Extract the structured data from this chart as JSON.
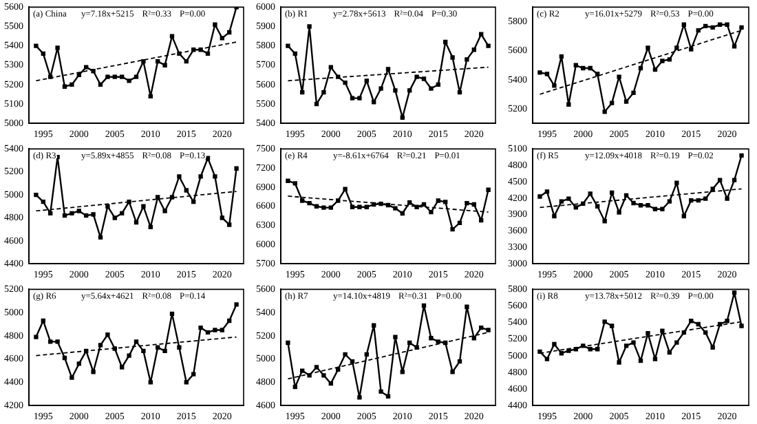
{
  "chart_data": [
    {
      "type": "line",
      "annotations": [
        "(a) China",
        "y=7.18x+5215",
        "R²=0.33",
        "P=0.00"
      ],
      "x": [
        1994,
        1995,
        1996,
        1997,
        1998,
        1999,
        2000,
        2001,
        2002,
        2003,
        2004,
        2005,
        2006,
        2007,
        2008,
        2009,
        2010,
        2011,
        2012,
        2013,
        2014,
        2015,
        2016,
        2017,
        2018,
        2019,
        2020,
        2021,
        2022
      ],
      "xlim": [
        1993,
        2023
      ],
      "xticks": [
        1995,
        2000,
        2005,
        2010,
        2015,
        2020
      ],
      "ylim": [
        5000,
        5600
      ],
      "yticks": [
        5000,
        5100,
        5200,
        5300,
        5400,
        5500,
        5600
      ],
      "marker": "square",
      "grid": false,
      "legend": false,
      "series": [
        {
          "color": "#000000",
          "values": [
            5400,
            5360,
            5240,
            5390,
            5190,
            5200,
            5250,
            5290,
            5270,
            5200,
            5240,
            5240,
            5240,
            5220,
            5240,
            5320,
            5140,
            5320,
            5300,
            5450,
            5360,
            5320,
            5380,
            5380,
            5360,
            5510,
            5440,
            5470,
            5600
          ]
        },
        {
          "type": "line",
          "color": "#000000",
          "line_style": "dashed",
          "marker": "none",
          "values": [
            5220,
            null,
            null,
            null,
            null,
            null,
            null,
            null,
            null,
            null,
            null,
            null,
            null,
            null,
            null,
            null,
            null,
            null,
            null,
            null,
            null,
            null,
            null,
            null,
            null,
            null,
            null,
            null,
            5420
          ]
        }
      ]
    },
    {
      "type": "line",
      "annotations": [
        "(b) R1",
        "y=2.78x+5613",
        "R²=0.04",
        "P=0.30"
      ],
      "x": [
        1994,
        1995,
        1996,
        1997,
        1998,
        1999,
        2000,
        2001,
        2002,
        2003,
        2004,
        2005,
        2006,
        2007,
        2008,
        2009,
        2010,
        2011,
        2012,
        2013,
        2014,
        2015,
        2016,
        2017,
        2018,
        2019,
        2020,
        2021,
        2022
      ],
      "xlim": [
        1993,
        2023
      ],
      "xticks": [
        1995,
        2000,
        2005,
        2010,
        2015,
        2020
      ],
      "ylim": [
        5400,
        6000
      ],
      "yticks": [
        5400,
        5500,
        5600,
        5700,
        5800,
        5900,
        6000
      ],
      "marker": "square",
      "grid": false,
      "legend": false,
      "series": [
        {
          "color": "#000000",
          "values": [
            5800,
            5760,
            5560,
            5900,
            5500,
            5560,
            5690,
            5640,
            5610,
            5530,
            5530,
            5620,
            5510,
            5580,
            5680,
            5570,
            5430,
            5570,
            5640,
            5630,
            5580,
            5600,
            5820,
            5740,
            5560,
            5730,
            5780,
            5860,
            5800
          ]
        },
        {
          "type": "line",
          "color": "#000000",
          "line_style": "dashed",
          "marker": "none",
          "values": [
            5620,
            null,
            null,
            null,
            null,
            null,
            null,
            null,
            null,
            null,
            null,
            null,
            null,
            null,
            null,
            null,
            null,
            null,
            null,
            null,
            null,
            null,
            null,
            null,
            null,
            null,
            null,
            null,
            5690
          ]
        }
      ]
    },
    {
      "type": "line",
      "annotations": [
        "(c) R2",
        "y=16.01x+5279",
        "R²=0.53",
        "P=0.00"
      ],
      "x": [
        1994,
        1995,
        1996,
        1997,
        1998,
        1999,
        2000,
        2001,
        2002,
        2003,
        2004,
        2005,
        2006,
        2007,
        2008,
        2009,
        2010,
        2011,
        2012,
        2013,
        2014,
        2015,
        2016,
        2017,
        2018,
        2019,
        2020,
        2021,
        2022
      ],
      "xlim": [
        1993,
        2023
      ],
      "xticks": [
        1995,
        2000,
        2005,
        2010,
        2015,
        2020
      ],
      "ylim": [
        5100,
        5900
      ],
      "yticks": [
        5200,
        5400,
        5600,
        5800
      ],
      "marker": "square",
      "grid": false,
      "legend": false,
      "series": [
        {
          "color": "#000000",
          "values": [
            5450,
            5440,
            5360,
            5560,
            5230,
            5500,
            5480,
            5480,
            5440,
            5180,
            5240,
            5420,
            5250,
            5310,
            5480,
            5620,
            5470,
            5530,
            5540,
            5620,
            5780,
            5610,
            5740,
            5770,
            5760,
            5780,
            5780,
            5630,
            5760
          ]
        },
        {
          "type": "line",
          "color": "#000000",
          "line_style": "dashed",
          "marker": "none",
          "values": [
            5300,
            null,
            null,
            null,
            null,
            null,
            null,
            null,
            null,
            null,
            null,
            null,
            null,
            null,
            null,
            null,
            null,
            null,
            null,
            null,
            null,
            null,
            null,
            null,
            null,
            null,
            null,
            null,
            5740
          ]
        }
      ]
    },
    {
      "type": "line",
      "annotations": [
        "(d) R3",
        "y=5.89x+4855",
        "R²=0.08",
        "P=0.13"
      ],
      "x": [
        1994,
        1995,
        1996,
        1997,
        1998,
        1999,
        2000,
        2001,
        2002,
        2003,
        2004,
        2005,
        2006,
        2007,
        2008,
        2009,
        2010,
        2011,
        2012,
        2013,
        2014,
        2015,
        2016,
        2017,
        2018,
        2019,
        2020,
        2021,
        2022
      ],
      "xlim": [
        1993,
        2023
      ],
      "xticks": [
        1995,
        2000,
        2005,
        2010,
        2015,
        2020
      ],
      "ylim": [
        4400,
        5400
      ],
      "yticks": [
        4400,
        4600,
        4800,
        5000,
        5200,
        5400
      ],
      "marker": "square",
      "grid": false,
      "legend": false,
      "series": [
        {
          "color": "#000000",
          "values": [
            5000,
            4940,
            4840,
            5330,
            4820,
            4840,
            4860,
            4820,
            4830,
            4630,
            4900,
            4800,
            4840,
            4940,
            4760,
            4900,
            4720,
            4980,
            4860,
            4980,
            5160,
            5040,
            4940,
            5160,
            5320,
            5160,
            4800,
            4740,
            5230
          ]
        },
        {
          "type": "line",
          "color": "#000000",
          "line_style": "dashed",
          "marker": "none",
          "values": [
            4860,
            null,
            null,
            null,
            null,
            null,
            null,
            null,
            null,
            null,
            null,
            null,
            null,
            null,
            null,
            null,
            null,
            null,
            null,
            null,
            null,
            null,
            null,
            null,
            null,
            null,
            null,
            null,
            5030
          ]
        }
      ]
    },
    {
      "type": "line",
      "annotations": [
        "(e) R4",
        "y=-8.61x+6764",
        "R²=0.21",
        "P=0.01"
      ],
      "x": [
        1994,
        1995,
        1996,
        1997,
        1998,
        1999,
        2000,
        2001,
        2002,
        2003,
        2004,
        2005,
        2006,
        2007,
        2008,
        2009,
        2010,
        2011,
        2012,
        2013,
        2014,
        2015,
        2016,
        2017,
        2018,
        2019,
        2020,
        2021,
        2022
      ],
      "xlim": [
        1993,
        2023
      ],
      "xticks": [
        1995,
        2000,
        2005,
        2010,
        2015,
        2020
      ],
      "ylim": [
        5700,
        7500
      ],
      "yticks": [
        5700,
        6000,
        6300,
        6600,
        6900,
        7200,
        7500
      ],
      "marker": "square",
      "grid": false,
      "legend": false,
      "series": [
        {
          "color": "#000000",
          "values": [
            7000,
            6960,
            6690,
            6650,
            6600,
            6580,
            6580,
            6690,
            6870,
            6590,
            6590,
            6590,
            6630,
            6640,
            6620,
            6570,
            6490,
            6660,
            6590,
            6630,
            6510,
            6690,
            6670,
            6240,
            6340,
            6650,
            6630,
            6380,
            6860
          ]
        },
        {
          "type": "line",
          "color": "#000000",
          "line_style": "dashed",
          "marker": "none",
          "values": [
            6760,
            null,
            null,
            null,
            null,
            null,
            null,
            null,
            null,
            null,
            null,
            null,
            null,
            null,
            null,
            null,
            null,
            null,
            null,
            null,
            null,
            null,
            null,
            null,
            null,
            null,
            null,
            null,
            6510
          ]
        }
      ]
    },
    {
      "type": "line",
      "annotations": [
        "(f) R5",
        "y=12.09x+4018",
        "R²=0.19",
        "P=0.02"
      ],
      "x": [
        1994,
        1995,
        1996,
        1997,
        1998,
        1999,
        2000,
        2001,
        2002,
        2003,
        2004,
        2005,
        2006,
        2007,
        2008,
        2009,
        2010,
        2011,
        2012,
        2013,
        2014,
        2015,
        2016,
        2017,
        2018,
        2019,
        2020,
        2021,
        2022
      ],
      "xlim": [
        1993,
        2023
      ],
      "xticks": [
        1995,
        2000,
        2005,
        2010,
        2015,
        2020
      ],
      "ylim": [
        3000,
        5100
      ],
      "yticks": [
        3000,
        3300,
        3600,
        3900,
        4200,
        4500,
        4800,
        5100
      ],
      "marker": "square",
      "grid": false,
      "legend": false,
      "series": [
        {
          "color": "#000000",
          "values": [
            4230,
            4320,
            3870,
            4140,
            4190,
            4030,
            4100,
            4280,
            4050,
            3780,
            4300,
            3940,
            4250,
            4110,
            4070,
            4070,
            4000,
            4000,
            4140,
            4480,
            3870,
            4160,
            4160,
            4190,
            4370,
            4530,
            4190,
            4530,
            4980
          ]
        },
        {
          "type": "line",
          "color": "#000000",
          "line_style": "dashed",
          "marker": "none",
          "values": [
            4030,
            null,
            null,
            null,
            null,
            null,
            null,
            null,
            null,
            null,
            null,
            null,
            null,
            null,
            null,
            null,
            null,
            null,
            null,
            null,
            null,
            null,
            null,
            null,
            null,
            null,
            null,
            null,
            4370
          ]
        }
      ]
    },
    {
      "type": "line",
      "annotations": [
        "(g) R6",
        "y=5.64x+4621",
        "R²=0.08",
        "P=0.14"
      ],
      "x": [
        1994,
        1995,
        1996,
        1997,
        1998,
        1999,
        2000,
        2001,
        2002,
        2003,
        2004,
        2005,
        2006,
        2007,
        2008,
        2009,
        2010,
        2011,
        2012,
        2013,
        2014,
        2015,
        2016,
        2017,
        2018,
        2019,
        2020,
        2021,
        2022
      ],
      "xlim": [
        1993,
        2023
      ],
      "xticks": [
        1995,
        2000,
        2005,
        2010,
        2015,
        2020
      ],
      "ylim": [
        4200,
        5200
      ],
      "yticks": [
        4200,
        4400,
        4600,
        4800,
        5000,
        5200
      ],
      "marker": "square",
      "grid": false,
      "legend": false,
      "series": [
        {
          "color": "#000000",
          "values": [
            4790,
            4930,
            4750,
            4750,
            4610,
            4440,
            4560,
            4670,
            4490,
            4720,
            4810,
            4690,
            4530,
            4630,
            4750,
            4670,
            4400,
            4700,
            4670,
            4990,
            4700,
            4400,
            4470,
            4870,
            4830,
            4850,
            4850,
            4930,
            5070
          ]
        },
        {
          "type": "line",
          "color": "#000000",
          "line_style": "dashed",
          "marker": "none",
          "values": [
            4630,
            null,
            null,
            null,
            null,
            null,
            null,
            null,
            null,
            null,
            null,
            null,
            null,
            null,
            null,
            null,
            null,
            null,
            null,
            null,
            null,
            null,
            null,
            null,
            null,
            null,
            null,
            null,
            4790
          ]
        }
      ]
    },
    {
      "type": "line",
      "annotations": [
        "(h) R7",
        "y=14.10x+4819",
        "R²=0.31",
        "P=0.00"
      ],
      "x": [
        1994,
        1995,
        1996,
        1997,
        1998,
        1999,
        2000,
        2001,
        2002,
        2003,
        2004,
        2005,
        2006,
        2007,
        2008,
        2009,
        2010,
        2011,
        2012,
        2013,
        2014,
        2015,
        2016,
        2017,
        2018,
        2019,
        2020,
        2021,
        2022
      ],
      "xlim": [
        1993,
        2023
      ],
      "xticks": [
        1995,
        2000,
        2005,
        2010,
        2015,
        2020
      ],
      "ylim": [
        4600,
        5600
      ],
      "yticks": [
        4600,
        4800,
        5000,
        5200,
        5400,
        5600
      ],
      "marker": "square",
      "grid": false,
      "legend": false,
      "series": [
        {
          "color": "#000000",
          "values": [
            5140,
            4760,
            4900,
            4860,
            4930,
            4860,
            4790,
            4910,
            5040,
            4980,
            4670,
            5040,
            5290,
            4720,
            4680,
            5190,
            4890,
            5140,
            5100,
            5460,
            5180,
            5150,
            5140,
            4890,
            4980,
            5450,
            5180,
            5270,
            5250
          ]
        },
        {
          "type": "line",
          "color": "#000000",
          "line_style": "dashed",
          "marker": "none",
          "values": [
            4830,
            null,
            null,
            null,
            null,
            null,
            null,
            null,
            null,
            null,
            null,
            null,
            null,
            null,
            null,
            null,
            null,
            null,
            null,
            null,
            null,
            null,
            null,
            null,
            null,
            null,
            null,
            null,
            5230
          ]
        }
      ]
    },
    {
      "type": "line",
      "annotations": [
        "(i) R8",
        "y=13.78x+5012",
        "R²=0.39",
        "P=0.00"
      ],
      "x": [
        1994,
        1995,
        1996,
        1997,
        1998,
        1999,
        2000,
        2001,
        2002,
        2003,
        2004,
        2005,
        2006,
        2007,
        2008,
        2009,
        2010,
        2011,
        2012,
        2013,
        2014,
        2015,
        2016,
        2017,
        2018,
        2019,
        2020,
        2021,
        2022
      ],
      "xlim": [
        1993,
        2023
      ],
      "xticks": [
        1995,
        2000,
        2005,
        2010,
        2015,
        2020
      ],
      "ylim": [
        4400,
        5800
      ],
      "yticks": [
        4400,
        4600,
        4800,
        5000,
        5200,
        5400,
        5600,
        5800
      ],
      "marker": "square",
      "grid": false,
      "legend": false,
      "series": [
        {
          "color": "#000000",
          "values": [
            5050,
            4960,
            5140,
            5030,
            5060,
            5080,
            5120,
            5080,
            5080,
            5410,
            5360,
            4920,
            5120,
            5160,
            4940,
            5270,
            4960,
            5300,
            5040,
            5160,
            5280,
            5420,
            5380,
            5280,
            5100,
            5380,
            5420,
            5760,
            5360
          ]
        },
        {
          "type": "line",
          "color": "#000000",
          "line_style": "dashed",
          "marker": "none",
          "values": [
            5030,
            null,
            null,
            null,
            null,
            null,
            null,
            null,
            null,
            null,
            null,
            null,
            null,
            null,
            null,
            null,
            null,
            null,
            null,
            null,
            null,
            null,
            null,
            null,
            null,
            null,
            null,
            null,
            5410
          ]
        }
      ]
    }
  ]
}
